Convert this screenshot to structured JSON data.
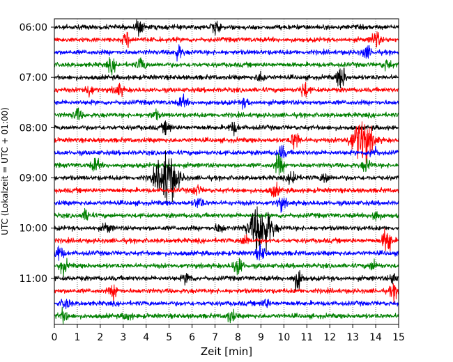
{
  "chart_data": {
    "type": "line",
    "title": "",
    "xlabel": "Zeit  [min]",
    "ylabel": "UTC (Lokalzeit = UTC + 01:00)",
    "xlim": [
      0,
      15
    ],
    "x_ticks": [
      "0",
      "1",
      "2",
      "3",
      "4",
      "5",
      "6",
      "7",
      "8",
      "9",
      "10",
      "11",
      "12",
      "13",
      "14",
      "15"
    ],
    "x_tick_values": [
      0,
      1,
      2,
      3,
      4,
      5,
      6,
      7,
      8,
      9,
      10,
      11,
      12,
      13,
      14,
      15
    ],
    "y_ticks": [
      "06:00",
      "07:00",
      "08:00",
      "09:00",
      "10:00",
      "11:00"
    ],
    "y_tick_minutes": [
      360,
      420,
      480,
      540,
      600,
      660
    ],
    "first_trace_start_minutes": 360,
    "minutes_per_trace": 15,
    "grid": "vertical dotted at each minute",
    "color_cycle": [
      "#000000",
      "#ff0000",
      "#0000ff",
      "#008000"
    ],
    "series": [
      {
        "name": "06:00",
        "color": "#000000",
        "events": [
          {
            "t": 3.7,
            "amp": 0.9
          },
          {
            "t": 7.0,
            "amp": 0.8
          }
        ]
      },
      {
        "name": "06:15",
        "color": "#ff0000",
        "events": [
          {
            "t": 3.2,
            "amp": 1.0
          },
          {
            "t": 14.0,
            "amp": 1.1
          }
        ]
      },
      {
        "name": "06:30",
        "color": "#0000ff",
        "events": [
          {
            "t": 5.4,
            "amp": 0.9
          },
          {
            "t": 13.6,
            "amp": 0.8
          }
        ]
      },
      {
        "name": "06:45",
        "color": "#008000",
        "events": [
          {
            "t": 2.5,
            "amp": 0.8
          },
          {
            "t": 3.8,
            "amp": 0.8
          },
          {
            "t": 14.5,
            "amp": 0.7
          }
        ]
      },
      {
        "name": "07:00",
        "color": "#000000",
        "events": [
          {
            "t": 12.5,
            "amp": 1.6
          },
          {
            "t": 9.0,
            "amp": 0.6
          }
        ]
      },
      {
        "name": "07:15",
        "color": "#ff0000",
        "events": [
          {
            "t": 1.5,
            "amp": 0.8
          },
          {
            "t": 2.8,
            "amp": 0.8
          },
          {
            "t": 10.9,
            "amp": 1.0
          }
        ]
      },
      {
        "name": "07:30",
        "color": "#0000ff",
        "events": [
          {
            "t": 5.6,
            "amp": 0.7
          },
          {
            "t": 8.3,
            "amp": 0.5
          }
        ]
      },
      {
        "name": "07:45",
        "color": "#008000",
        "events": [
          {
            "t": 1.0,
            "amp": 0.8
          },
          {
            "t": 4.4,
            "amp": 0.5
          }
        ]
      },
      {
        "name": "08:00",
        "color": "#000000",
        "events": [
          {
            "t": 4.9,
            "amp": 0.8
          },
          {
            "t": 7.8,
            "amp": 0.7
          }
        ]
      },
      {
        "name": "08:15",
        "color": "#ff0000",
        "events": [
          {
            "t": 13.4,
            "amp": 2.8
          },
          {
            "t": 10.5,
            "amp": 1.2
          }
        ]
      },
      {
        "name": "08:30",
        "color": "#0000ff",
        "events": [
          {
            "t": 9.9,
            "amp": 0.8
          },
          {
            "t": 13.9,
            "amp": 0.7
          }
        ]
      },
      {
        "name": "08:45",
        "color": "#008000",
        "events": [
          {
            "t": 1.8,
            "amp": 0.8
          },
          {
            "t": 9.8,
            "amp": 1.4
          },
          {
            "t": 13.6,
            "amp": 0.8
          }
        ]
      },
      {
        "name": "09:00",
        "color": "#000000",
        "events": [
          {
            "t": 4.9,
            "amp": 3.5
          },
          {
            "t": 10.4,
            "amp": 1.0
          },
          {
            "t": 11.8,
            "amp": 0.7
          }
        ]
      },
      {
        "name": "09:15",
        "color": "#ff0000",
        "events": [
          {
            "t": 9.6,
            "amp": 0.8
          },
          {
            "t": 6.2,
            "amp": 0.6
          }
        ]
      },
      {
        "name": "09:30",
        "color": "#0000ff",
        "events": [
          {
            "t": 6.3,
            "amp": 0.7
          },
          {
            "t": 9.9,
            "amp": 0.8
          }
        ]
      },
      {
        "name": "09:45",
        "color": "#008000",
        "events": [
          {
            "t": 1.4,
            "amp": 0.7
          },
          {
            "t": 14.0,
            "amp": 0.8
          }
        ]
      },
      {
        "name": "10:00",
        "color": "#000000",
        "events": [
          {
            "t": 9.0,
            "amp": 3.5
          },
          {
            "t": 2.3,
            "amp": 0.6
          },
          {
            "t": 7.2,
            "amp": 0.6
          }
        ]
      },
      {
        "name": "10:15",
        "color": "#ff0000",
        "events": [
          {
            "t": 14.5,
            "amp": 2.0
          },
          {
            "t": 8.3,
            "amp": 0.7
          }
        ]
      },
      {
        "name": "10:30",
        "color": "#0000ff",
        "events": [
          {
            "t": 0.2,
            "amp": 1.0
          },
          {
            "t": 9.0,
            "amp": 1.0
          }
        ]
      },
      {
        "name": "10:45",
        "color": "#008000",
        "events": [
          {
            "t": 0.4,
            "amp": 0.9
          },
          {
            "t": 8.0,
            "amp": 1.4
          },
          {
            "t": 13.9,
            "amp": 0.6
          }
        ]
      },
      {
        "name": "11:00",
        "color": "#000000",
        "events": [
          {
            "t": 10.6,
            "amp": 1.5
          },
          {
            "t": 5.8,
            "amp": 0.7
          },
          {
            "t": 14.8,
            "amp": 0.7
          }
        ]
      },
      {
        "name": "11:15",
        "color": "#ff0000",
        "events": [
          {
            "t": 2.6,
            "amp": 0.9
          },
          {
            "t": 14.8,
            "amp": 0.9
          }
        ]
      },
      {
        "name": "11:30",
        "color": "#0000ff",
        "events": [
          {
            "t": 0.5,
            "amp": 0.7
          },
          {
            "t": 9.2,
            "amp": 0.5
          }
        ]
      },
      {
        "name": "11:45",
        "color": "#008000",
        "events": [
          {
            "t": 0.4,
            "amp": 0.8
          },
          {
            "t": 7.7,
            "amp": 0.8
          },
          {
            "t": 3.2,
            "amp": 0.5
          }
        ]
      }
    ]
  }
}
